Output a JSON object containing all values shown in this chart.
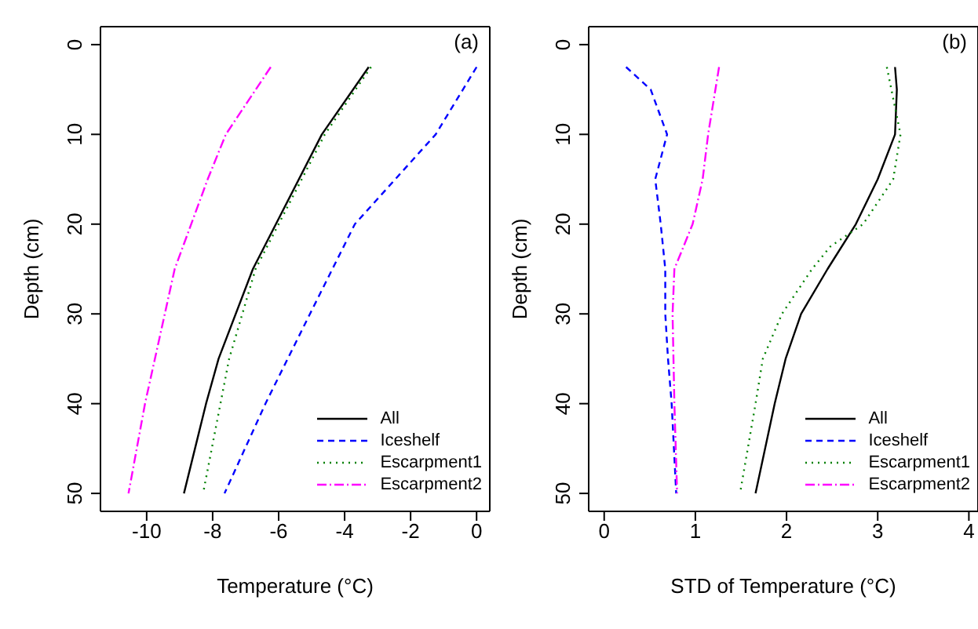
{
  "chart_data": [
    {
      "type": "line",
      "xlabel": "Temperature (°C)",
      "ylabel": "Depth (cm)",
      "annotations": [
        "(a)"
      ],
      "xlim": [
        -11.4,
        0.4
      ],
      "xticks": [
        -10,
        -8,
        -6,
        -4,
        -2,
        0
      ],
      "ylim": [
        52,
        -2
      ],
      "yticks": [
        0,
        10,
        20,
        30,
        40,
        50
      ],
      "legend": "bottom right",
      "marker": "none",
      "series": [
        {
          "name": "All",
          "color": "#000000",
          "line_style": "solid",
          "x": [
            -3.27,
            -4.69,
            -6.78,
            -7.82,
            -8.2,
            -8.87
          ],
          "values": [
            2.5,
            10,
            25,
            35,
            40,
            50
          ]
        },
        {
          "name": "Iceshelf",
          "color": "#0000ff",
          "line_style": "dashed",
          "x": [
            0,
            -1.24,
            -3.69,
            -5.05,
            -6.4,
            -7.64
          ],
          "values": [
            2.5,
            10,
            20,
            30,
            40,
            50
          ]
        },
        {
          "name": "Escarpment1",
          "color": "#008000",
          "line_style": "dotted",
          "x": [
            -3.2,
            -4.6,
            -6.7,
            -7.5,
            -8.29
          ],
          "values": [
            2.5,
            10,
            25,
            35,
            50
          ]
        },
        {
          "name": "Escarpment2",
          "color": "#ff00ff",
          "line_style": "dashdot",
          "x": [
            -6.24,
            -7.6,
            -8.15,
            -9.15,
            -10.05,
            -10.55
          ],
          "values": [
            2.5,
            10,
            15,
            25,
            40,
            50
          ]
        }
      ]
    },
    {
      "type": "line",
      "xlabel": "STD of Temperature (°C)",
      "ylabel": "Depth (cm)",
      "annotations": [
        "(b)"
      ],
      "xlim": [
        -0.17,
        4.1
      ],
      "xticks": [
        0,
        1,
        2,
        3,
        4
      ],
      "ylim": [
        52,
        -2
      ],
      "yticks": [
        0,
        10,
        20,
        30,
        40,
        50
      ],
      "legend": "bottom right",
      "marker": "none",
      "series": [
        {
          "name": "All",
          "color": "#000000",
          "line_style": "solid",
          "x": [
            3.19,
            3.21,
            3.19,
            3.0,
            2.76,
            2.45,
            2.16,
            1.99,
            1.87,
            1.66
          ],
          "values": [
            2.5,
            5,
            10,
            15,
            20,
            25,
            30,
            35,
            40,
            50
          ]
        },
        {
          "name": "Iceshelf",
          "color": "#0000ff",
          "line_style": "dashed",
          "x": [
            0.24,
            0.51,
            0.69,
            0.56,
            0.62,
            0.67,
            0.67,
            0.7,
            0.74,
            0.79
          ],
          "values": [
            2.5,
            5,
            10,
            15,
            20,
            25,
            30,
            35,
            40,
            50
          ]
        },
        {
          "name": "Escarpment1",
          "color": "#008000",
          "line_style": "dotted",
          "x": [
            3.1,
            3.25,
            3.17,
            2.84,
            2.48,
            2.28,
            1.95,
            1.74,
            1.66,
            1.49
          ],
          "values": [
            2.5,
            10,
            15,
            20,
            22.5,
            25,
            30,
            35,
            40,
            50
          ]
        },
        {
          "name": "Escarpment2",
          "color": "#ff00ff",
          "line_style": "dashdot",
          "x": [
            1.26,
            1.14,
            1.08,
            0.97,
            0.77,
            0.75,
            0.77,
            0.8
          ],
          "values": [
            2.5,
            10,
            15,
            20,
            25,
            30,
            40,
            50
          ]
        }
      ]
    }
  ]
}
